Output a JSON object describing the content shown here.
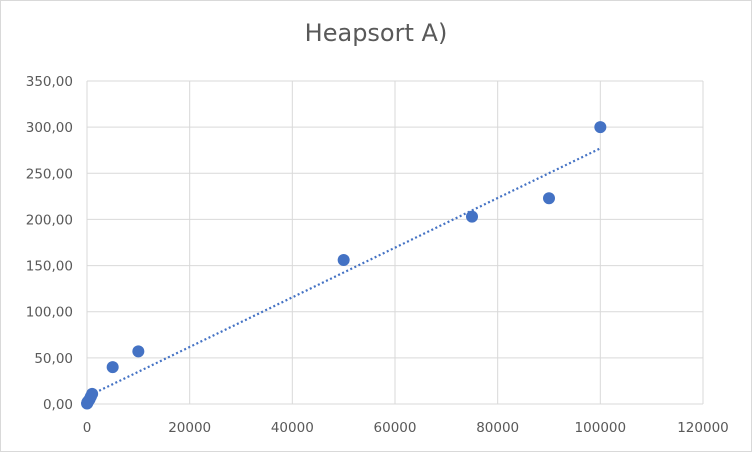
{
  "chart_data": {
    "type": "scatter",
    "title": "Heapsort A)",
    "xlabel": "",
    "ylabel": "",
    "xlim": [
      0,
      120000
    ],
    "ylim": [
      0,
      350
    ],
    "x_ticks": [
      "0",
      "20000",
      "40000",
      "60000",
      "80000",
      "100000",
      "120000"
    ],
    "y_ticks": [
      "0,00",
      "50,00",
      "100,00",
      "150,00",
      "200,00",
      "250,00",
      "300,00",
      "350,00"
    ],
    "grid": true,
    "legend": "none",
    "series": [
      {
        "color": "#4472c4",
        "points": [
          {
            "x": 10,
            "y": 0.5
          },
          {
            "x": 50,
            "y": 1
          },
          {
            "x": 100,
            "y": 2
          },
          {
            "x": 250,
            "y": 3
          },
          {
            "x": 500,
            "y": 5
          },
          {
            "x": 750,
            "y": 8
          },
          {
            "x": 1000,
            "y": 11
          },
          {
            "x": 5000,
            "y": 40
          },
          {
            "x": 10000,
            "y": 57
          },
          {
            "x": 50000,
            "y": 156
          },
          {
            "x": 75000,
            "y": 203
          },
          {
            "x": 90000,
            "y": 223
          },
          {
            "x": 100000,
            "y": 300
          }
        ]
      }
    ],
    "trendline": {
      "type": "linear",
      "style": "dotted",
      "color": "#4472c4",
      "x": [
        0,
        100000
      ],
      "y": [
        8,
        277
      ]
    }
  }
}
